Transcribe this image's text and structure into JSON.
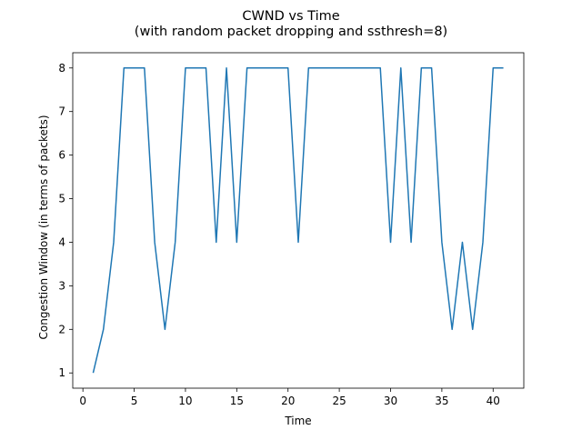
{
  "chart_data": {
    "type": "line",
    "title": "CWND vs Time",
    "subtitle": "(with random packet dropping and ssthresh=8)",
    "xlabel": "Time",
    "ylabel": "Congestion Window (in terms of packets)",
    "xlim": [
      -0.99,
      42.99
    ],
    "ylim": [
      0.65,
      8.35
    ],
    "xticks": [
      0,
      5,
      10,
      15,
      20,
      25,
      30,
      35,
      40
    ],
    "yticks": [
      1,
      2,
      3,
      4,
      5,
      6,
      7,
      8
    ],
    "grid": false,
    "line_color": "#1f77b4",
    "series": [
      {
        "x": [
          1,
          2,
          3,
          4,
          5,
          6,
          7,
          8,
          9,
          10,
          11,
          12,
          13,
          14,
          15,
          16,
          17,
          18,
          19,
          20,
          21,
          22,
          23,
          24,
          25,
          26,
          27,
          28,
          29,
          30,
          31,
          32,
          33,
          34,
          35,
          36,
          37,
          38,
          39,
          40,
          41
        ],
        "values": [
          1,
          2,
          4,
          8,
          8,
          8,
          4,
          2,
          4,
          8,
          8,
          8,
          4,
          8,
          4,
          8,
          8,
          8,
          8,
          8,
          4,
          8,
          8,
          8,
          8,
          8,
          8,
          8,
          8,
          4,
          8,
          4,
          8,
          8,
          4,
          2,
          4,
          2,
          4,
          8,
          8
        ]
      }
    ]
  }
}
